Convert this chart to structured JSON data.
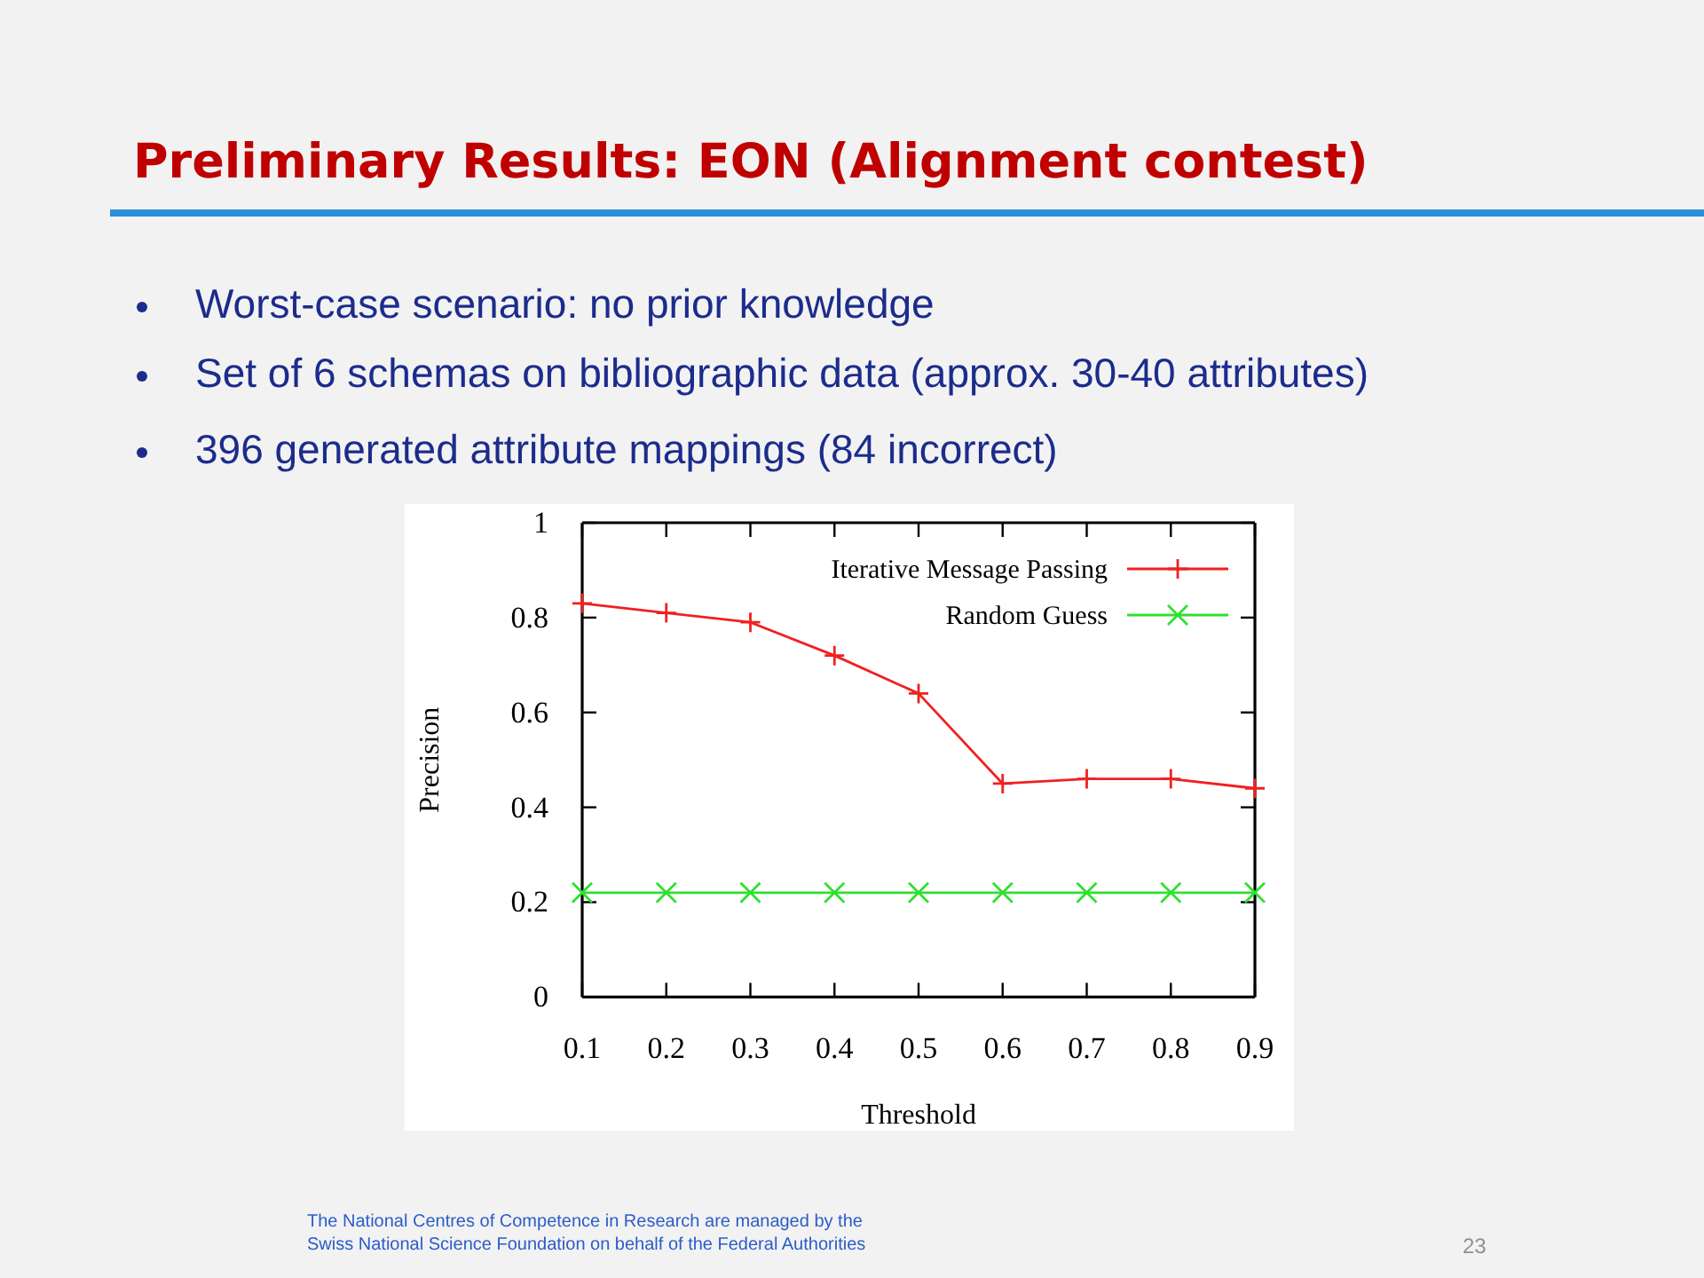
{
  "chart_data": {
    "type": "line",
    "title": "Preliminary Results: EON (Alignment contest)",
    "xlabel": "Threshold",
    "ylabel": "Precision",
    "x": [
      0.1,
      0.2,
      0.3,
      0.4,
      0.5,
      0.6,
      0.7,
      0.8,
      0.9
    ],
    "series": [
      {
        "name": "Iterative Message Passing",
        "color": "#f02020",
        "marker": "cross",
        "values": [
          0.83,
          0.81,
          0.79,
          0.72,
          0.64,
          0.45,
          0.46,
          0.46,
          0.44
        ]
      },
      {
        "name": "Random Guess",
        "color": "#30e030",
        "marker": "x",
        "values": [
          0.22,
          0.22,
          0.22,
          0.22,
          0.22,
          0.22,
          0.22,
          0.22,
          0.22
        ]
      }
    ],
    "xlim": [
      0.1,
      0.9
    ],
    "xticks": [
      0.1,
      0.2,
      0.3,
      0.4,
      0.5,
      0.6,
      0.7,
      0.8,
      0.9
    ],
    "ylim": [
      0,
      1
    ],
    "yticks": [
      0,
      0.2,
      0.4,
      0.6,
      0.8,
      1
    ],
    "legend": "top right",
    "grid": false,
    "line_style": "solid",
    "annotations": [
      "Worst-case scenario: no prior knowledge",
      "Set of 6 schemas on bibliographic data (approx. 30-40 attributes)",
      "396 generated attribute mappings (84 incorrect)",
      "The National Centres of Competence in Research are managed by the Swiss National Science Foundation on behalf of the Federal Authorities",
      "23"
    ]
  }
}
